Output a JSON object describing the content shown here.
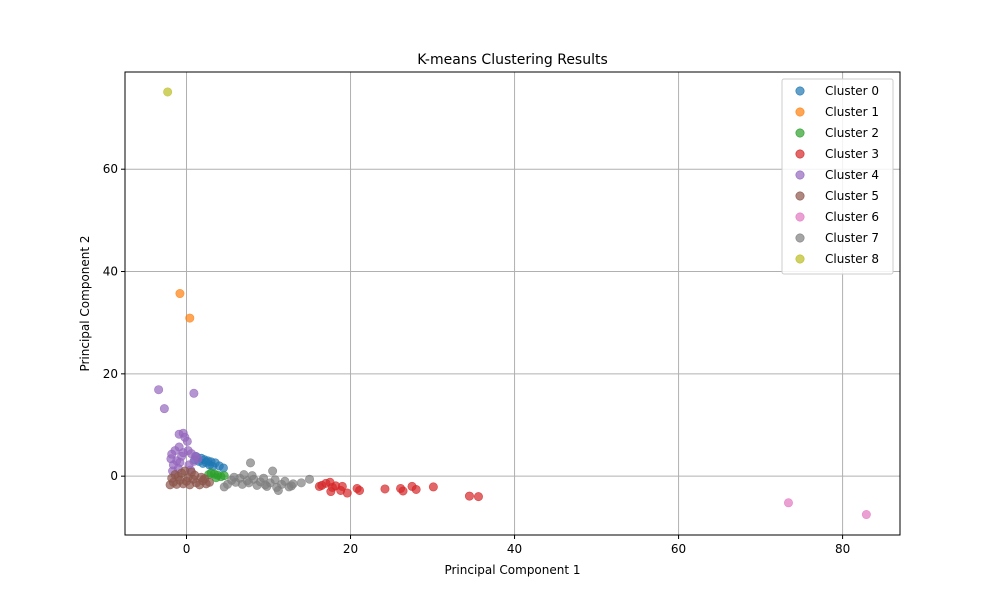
{
  "chart_data": {
    "type": "scatter",
    "title": "K-means Clustering Results",
    "xlabel": "Principal Component 1",
    "ylabel": "Principal Component 2",
    "xlim": [
      -7.5,
      87
    ],
    "ylim": [
      -11.5,
      79
    ],
    "xticks": [
      0,
      20,
      40,
      60,
      80
    ],
    "yticks": [
      0,
      20,
      40,
      60
    ],
    "grid": true,
    "legend_position": "top-right",
    "series": [
      {
        "name": "Cluster 0",
        "color": "#1f77b4",
        "points": [
          [
            1.2,
            3.8
          ],
          [
            1.8,
            3.5
          ],
          [
            2.2,
            3.2
          ],
          [
            2.6,
            3.0
          ],
          [
            3.0,
            2.8
          ],
          [
            3.5,
            2.6
          ],
          [
            4.0,
            2.0
          ],
          [
            4.5,
            1.6
          ],
          [
            2.0,
            2.5
          ],
          [
            1.5,
            2.9
          ],
          [
            2.8,
            2.2
          ],
          [
            3.2,
            1.9
          ],
          [
            1.0,
            3.2
          ],
          [
            2.4,
            2.7
          ]
        ]
      },
      {
        "name": "Cluster 1",
        "color": "#ff7f0e",
        "points": [
          [
            -0.8,
            35.7
          ],
          [
            0.4,
            30.9
          ]
        ]
      },
      {
        "name": "Cluster 2",
        "color": "#2ca02c",
        "points": [
          [
            3.4,
            0.4
          ],
          [
            3.8,
            0.2
          ],
          [
            3.0,
            0.6
          ],
          [
            4.2,
            -0.1
          ],
          [
            2.7,
            0.3
          ],
          [
            3.6,
            -0.3
          ],
          [
            4.6,
            0.1
          ]
        ]
      },
      {
        "name": "Cluster 3",
        "color": "#d62728",
        "points": [
          [
            16.5,
            -1.8
          ],
          [
            17.0,
            -1.4
          ],
          [
            17.5,
            -1.2
          ],
          [
            17.8,
            -2.2
          ],
          [
            18.2,
            -1.9
          ],
          [
            18.8,
            -2.8
          ],
          [
            19.0,
            -2.0
          ],
          [
            19.6,
            -3.3
          ],
          [
            20.8,
            -2.4
          ],
          [
            21.1,
            -2.8
          ],
          [
            24.2,
            -2.5
          ],
          [
            26.1,
            -2.4
          ],
          [
            26.4,
            -2.9
          ],
          [
            27.5,
            -2.0
          ],
          [
            28.0,
            -2.6
          ],
          [
            30.1,
            -2.1
          ],
          [
            34.5,
            -3.9
          ],
          [
            35.6,
            -4.0
          ],
          [
            17.6,
            -3.0
          ],
          [
            16.2,
            -2.0
          ]
        ]
      },
      {
        "name": "Cluster 4",
        "color": "#9467bd",
        "points": [
          [
            -3.4,
            16.9
          ],
          [
            -2.7,
            13.2
          ],
          [
            0.9,
            16.2
          ],
          [
            -0.9,
            8.2
          ],
          [
            -0.4,
            8.4
          ],
          [
            -0.2,
            7.6
          ],
          [
            0.1,
            6.8
          ],
          [
            -1.4,
            5.0
          ],
          [
            -0.9,
            5.7
          ],
          [
            -1.8,
            4.3
          ],
          [
            -0.6,
            3.9
          ],
          [
            0.6,
            4.4
          ],
          [
            1.1,
            3.9
          ],
          [
            -1.6,
            2.2
          ],
          [
            -0.8,
            2.7
          ],
          [
            0.3,
            2.2
          ],
          [
            -1.2,
            3.0
          ],
          [
            0.9,
            2.9
          ],
          [
            -1.9,
            3.4
          ],
          [
            0.2,
            5.0
          ],
          [
            -0.4,
            4.6
          ],
          [
            1.4,
            3.4
          ],
          [
            -1.0,
            1.5
          ],
          [
            0.5,
            1.2
          ],
          [
            -1.7,
            1.0
          ]
        ]
      },
      {
        "name": "Cluster 5",
        "color": "#8c564b",
        "points": [
          [
            -2.0,
            -1.7
          ],
          [
            -1.6,
            -1.2
          ],
          [
            -1.2,
            -1.6
          ],
          [
            -0.8,
            -0.8
          ],
          [
            -0.4,
            -1.5
          ],
          [
            0.0,
            -1.0
          ],
          [
            0.4,
            -1.7
          ],
          [
            0.8,
            -0.6
          ],
          [
            1.2,
            -1.3
          ],
          [
            1.6,
            -1.7
          ],
          [
            2.0,
            -0.9
          ],
          [
            2.4,
            -1.5
          ],
          [
            2.8,
            -1.2
          ],
          [
            -1.4,
            0.3
          ],
          [
            -0.6,
            0.6
          ],
          [
            0.2,
            -0.3
          ],
          [
            1.0,
            0.2
          ],
          [
            -1.8,
            -0.4
          ],
          [
            -0.2,
            1.0
          ],
          [
            0.6,
            0.8
          ],
          [
            1.8,
            -0.2
          ],
          [
            -1.0,
            -0.1
          ],
          [
            2.2,
            -0.5
          ]
        ]
      },
      {
        "name": "Cluster 6",
        "color": "#e377c2",
        "points": [
          [
            73.4,
            -5.2
          ],
          [
            82.9,
            -7.5
          ]
        ]
      },
      {
        "name": "Cluster 7",
        "color": "#7f7f7f",
        "points": [
          [
            4.6,
            -2.1
          ],
          [
            5.0,
            -1.6
          ],
          [
            5.5,
            -0.8
          ],
          [
            6.0,
            -1.2
          ],
          [
            6.5,
            -0.4
          ],
          [
            7.0,
            0.3
          ],
          [
            7.4,
            -0.9
          ],
          [
            7.8,
            2.6
          ],
          [
            8.2,
            -0.6
          ],
          [
            8.6,
            -1.8
          ],
          [
            9.0,
            -1.1
          ],
          [
            9.4,
            -0.4
          ],
          [
            9.8,
            -2.0
          ],
          [
            10.2,
            -1.3
          ],
          [
            10.5,
            1.0
          ],
          [
            10.8,
            -0.7
          ],
          [
            11.2,
            -2.8
          ],
          [
            11.6,
            -1.6
          ],
          [
            12.0,
            -1.0
          ],
          [
            12.5,
            -2.1
          ],
          [
            13.0,
            -1.5
          ],
          [
            14.0,
            -1.3
          ],
          [
            15.0,
            -0.6
          ],
          [
            5.8,
            -0.2
          ],
          [
            6.8,
            -1.6
          ],
          [
            8.0,
            0.1
          ],
          [
            9.6,
            -1.7
          ],
          [
            11.0,
            -2.2
          ],
          [
            12.8,
            -1.9
          ],
          [
            7.6,
            -1.3
          ]
        ]
      },
      {
        "name": "Cluster 8",
        "color": "#bcbd22",
        "points": [
          [
            -2.3,
            75.1
          ]
        ]
      }
    ]
  }
}
